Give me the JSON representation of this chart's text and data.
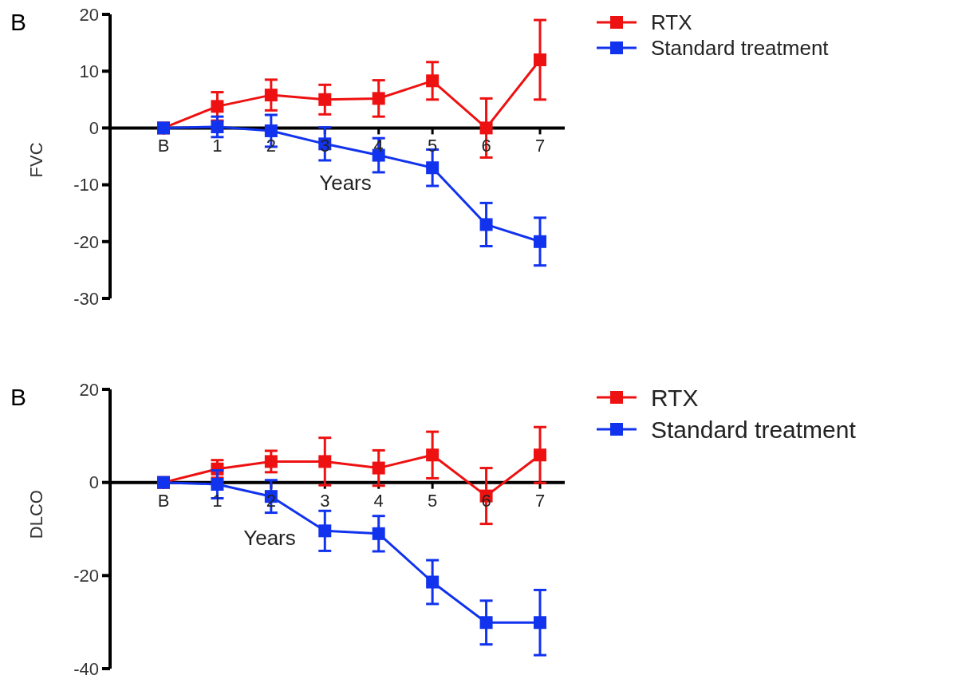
{
  "chart_data": [
    {
      "type": "line",
      "ylabel": "FVC",
      "xlabel": "Years",
      "annotations": [
        "B"
      ],
      "categories": [
        "B",
        "1",
        "2",
        "3",
        "4",
        "5",
        "6",
        "7"
      ],
      "ylim": [
        -30,
        20
      ],
      "yticks": [
        20,
        10,
        0,
        -10,
        -20,
        -30
      ],
      "marker": "square",
      "legend": "top right",
      "series": [
        {
          "name": "RTX",
          "color": "#ee1111",
          "values": [
            0,
            3.8,
            5.8,
            5,
            5.2,
            8.3,
            0,
            12
          ],
          "errors": [
            null,
            2.5,
            2.7,
            2.6,
            3.2,
            3.3,
            5.2,
            7
          ]
        },
        {
          "name": "Standard treatment",
          "color": "#1133ee",
          "values": [
            0,
            0.2,
            -0.5,
            -2.8,
            -4.8,
            -7,
            -17,
            -20
          ],
          "errors": [
            null,
            1.8,
            2.8,
            2.9,
            3,
            3.2,
            3.8,
            4.2
          ]
        }
      ]
    },
    {
      "type": "line",
      "ylabel": "DLCO",
      "xlabel": "Years",
      "annotations": [
        "B"
      ],
      "categories": [
        "B",
        "1",
        "2",
        "3",
        "4",
        "5",
        "6",
        "7"
      ],
      "ylim": [
        -40,
        20
      ],
      "yticks": [
        20,
        0,
        -20,
        -40
      ],
      "marker": "square",
      "legend": "top right",
      "series": [
        {
          "name": "RTX",
          "color": "#ee1111",
          "values": [
            0,
            2.9,
            4.5,
            4.5,
            3.1,
            5.9,
            -2.9,
            5.9
          ],
          "errors": [
            null,
            1.9,
            2.3,
            5.1,
            3.8,
            5,
            6,
            6
          ]
        },
        {
          "name": "Standard treatment",
          "color": "#1133ee",
          "values": [
            0,
            -0.4,
            -3,
            -10.4,
            -11,
            -21.4,
            -30.1,
            -30.1
          ],
          "errors": [
            null,
            3,
            3.5,
            4.3,
            3.8,
            4.7,
            4.7,
            7
          ]
        }
      ]
    }
  ]
}
